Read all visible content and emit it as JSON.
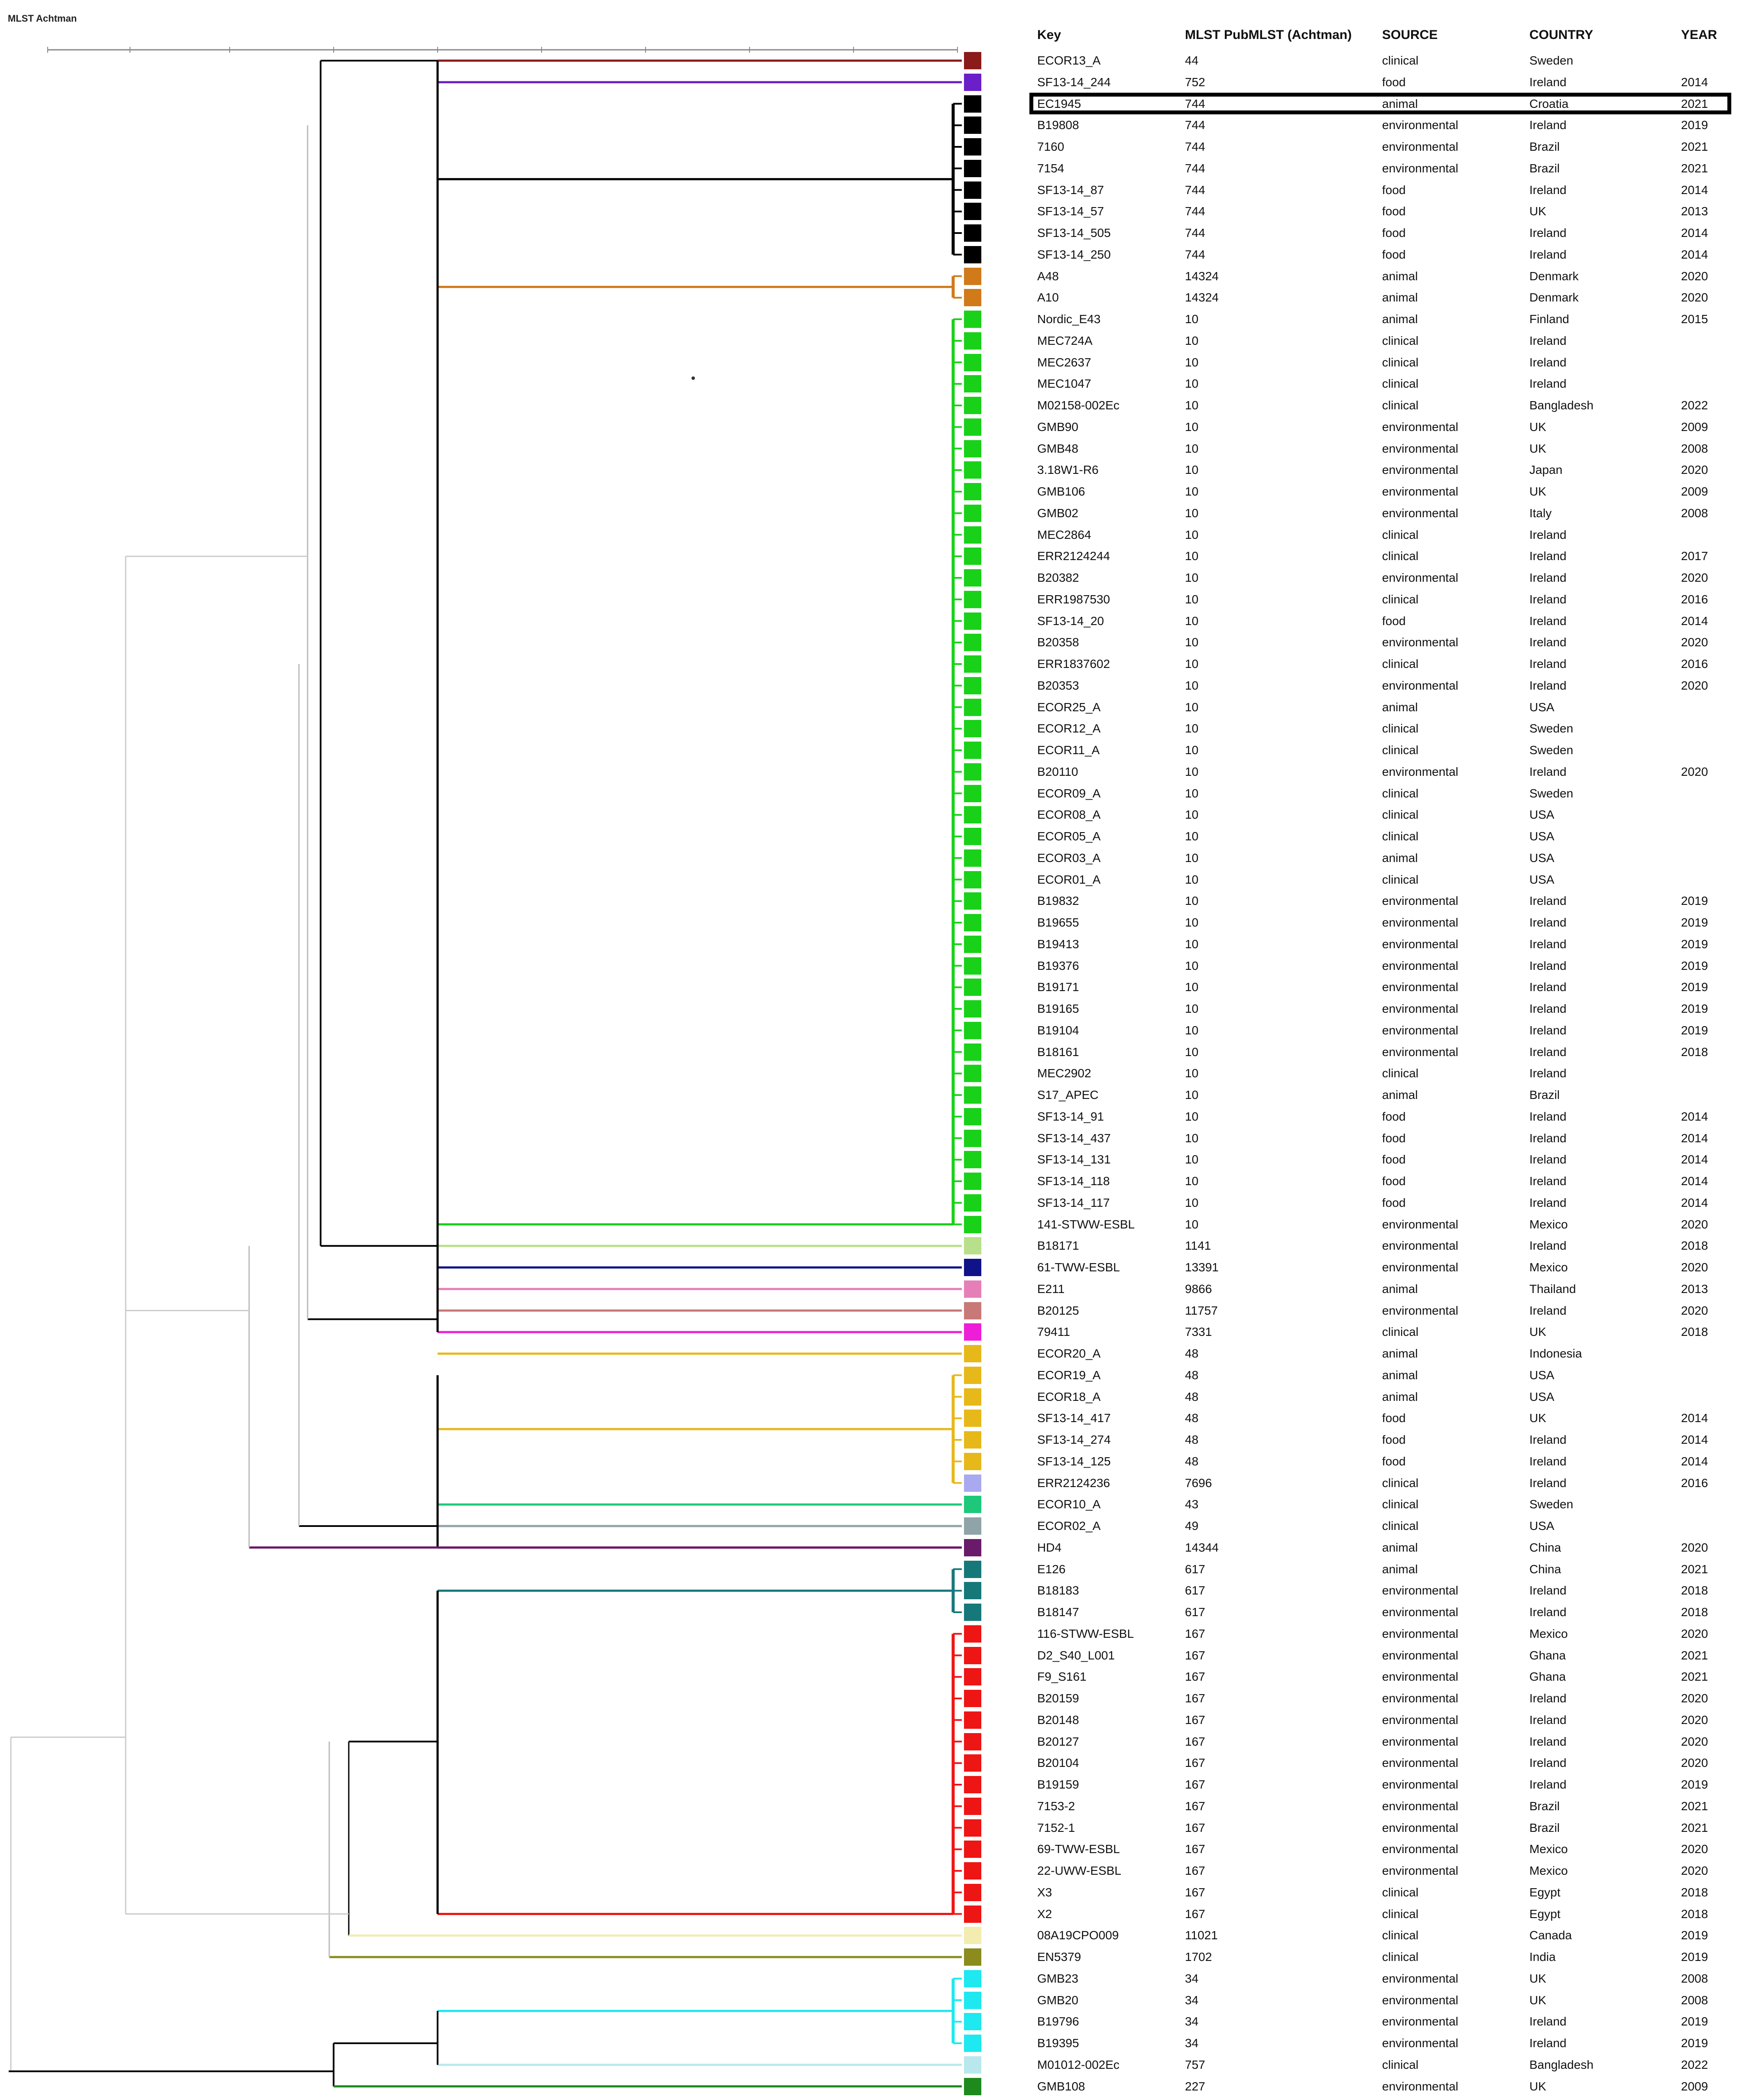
{
  "title": "MLST Achtman",
  "headers": {
    "key": "Key",
    "mlst": "MLST PubMLST (Achtman)",
    "source": "SOURCE",
    "country": "COUNTRY",
    "year": "YEAR"
  },
  "highlighted_row": 2,
  "rows": [
    {
      "key": "ECOR13_A",
      "st": "44",
      "source": "clinical",
      "country": "Sweden",
      "year": "",
      "color": "#8b1a1a"
    },
    {
      "key": "SF13-14_244",
      "st": "752",
      "source": "food",
      "country": "Ireland",
      "year": "2014",
      "color": "#6a1fc9"
    },
    {
      "key": "EC1945",
      "st": "744",
      "source": "animal",
      "country": "Croatia",
      "year": "2021",
      "color": "#000000"
    },
    {
      "key": "B19808",
      "st": "744",
      "source": "environmental",
      "country": "Ireland",
      "year": "2019",
      "color": "#000000"
    },
    {
      "key": "7160",
      "st": "744",
      "source": "environmental",
      "country": "Brazil",
      "year": "2021",
      "color": "#000000"
    },
    {
      "key": "7154",
      "st": "744",
      "source": "environmental",
      "country": "Brazil",
      "year": "2021",
      "color": "#000000"
    },
    {
      "key": "SF13-14_87",
      "st": "744",
      "source": "food",
      "country": "Ireland",
      "year": "2014",
      "color": "#000000"
    },
    {
      "key": "SF13-14_57",
      "st": "744",
      "source": "food",
      "country": "UK",
      "year": "2013",
      "color": "#000000"
    },
    {
      "key": "SF13-14_505",
      "st": "744",
      "source": "food",
      "country": "Ireland",
      "year": "2014",
      "color": "#000000"
    },
    {
      "key": "SF13-14_250",
      "st": "744",
      "source": "food",
      "country": "Ireland",
      "year": "2014",
      "color": "#000000"
    },
    {
      "key": "A48",
      "st": "14324",
      "source": "animal",
      "country": "Denmark",
      "year": "2020",
      "color": "#d07a1a"
    },
    {
      "key": "A10",
      "st": "14324",
      "source": "animal",
      "country": "Denmark",
      "year": "2020",
      "color": "#d07a1a"
    },
    {
      "key": "Nordic_E43",
      "st": "10",
      "source": "animal",
      "country": "Finland",
      "year": "2015",
      "color": "#19d119"
    },
    {
      "key": "MEC724A",
      "st": "10",
      "source": "clinical",
      "country": "Ireland",
      "year": "",
      "color": "#19d119"
    },
    {
      "key": "MEC2637",
      "st": "10",
      "source": "clinical",
      "country": "Ireland",
      "year": "",
      "color": "#19d119"
    },
    {
      "key": "MEC1047",
      "st": "10",
      "source": "clinical",
      "country": "Ireland",
      "year": "",
      "color": "#19d119"
    },
    {
      "key": "M02158-002Ec",
      "st": "10",
      "source": "clinical",
      "country": "Bangladesh",
      "year": "2022",
      "color": "#19d119"
    },
    {
      "key": "GMB90",
      "st": "10",
      "source": "environmental",
      "country": "UK",
      "year": "2009",
      "color": "#19d119"
    },
    {
      "key": "GMB48",
      "st": "10",
      "source": "environmental",
      "country": "UK",
      "year": "2008",
      "color": "#19d119"
    },
    {
      "key": "3.18W1-R6",
      "st": "10",
      "source": "environmental",
      "country": "Japan",
      "year": "2020",
      "color": "#19d119"
    },
    {
      "key": "GMB106",
      "st": "10",
      "source": "environmental",
      "country": "UK",
      "year": "2009",
      "color": "#19d119"
    },
    {
      "key": "GMB02",
      "st": "10",
      "source": "environmental",
      "country": "Italy",
      "year": "2008",
      "color": "#19d119"
    },
    {
      "key": "MEC2864",
      "st": "10",
      "source": "clinical",
      "country": "Ireland",
      "year": "",
      "color": "#19d119"
    },
    {
      "key": "ERR2124244",
      "st": "10",
      "source": "clinical",
      "country": "Ireland",
      "year": "2017",
      "color": "#19d119"
    },
    {
      "key": "B20382",
      "st": "10",
      "source": "environmental",
      "country": "Ireland",
      "year": "2020",
      "color": "#19d119"
    },
    {
      "key": "ERR1987530",
      "st": "10",
      "source": "clinical",
      "country": "Ireland",
      "year": "2016",
      "color": "#19d119"
    },
    {
      "key": "SF13-14_20",
      "st": "10",
      "source": "food",
      "country": "Ireland",
      "year": "2014",
      "color": "#19d119"
    },
    {
      "key": "B20358",
      "st": "10",
      "source": "environmental",
      "country": "Ireland",
      "year": "2020",
      "color": "#19d119"
    },
    {
      "key": "ERR1837602",
      "st": "10",
      "source": "clinical",
      "country": "Ireland",
      "year": "2016",
      "color": "#19d119"
    },
    {
      "key": "B20353",
      "st": "10",
      "source": "environmental",
      "country": "Ireland",
      "year": "2020",
      "color": "#19d119"
    },
    {
      "key": "ECOR25_A",
      "st": "10",
      "source": "animal",
      "country": "USA",
      "year": "",
      "color": "#19d119"
    },
    {
      "key": "ECOR12_A",
      "st": "10",
      "source": "clinical",
      "country": "Sweden",
      "year": "",
      "color": "#19d119"
    },
    {
      "key": "ECOR11_A",
      "st": "10",
      "source": "clinical",
      "country": "Sweden",
      "year": "",
      "color": "#19d119"
    },
    {
      "key": "B20110",
      "st": "10",
      "source": "environmental",
      "country": "Ireland",
      "year": "2020",
      "color": "#19d119"
    },
    {
      "key": "ECOR09_A",
      "st": "10",
      "source": "clinical",
      "country": "Sweden",
      "year": "",
      "color": "#19d119"
    },
    {
      "key": "ECOR08_A",
      "st": "10",
      "source": "clinical",
      "country": "USA",
      "year": "",
      "color": "#19d119"
    },
    {
      "key": "ECOR05_A",
      "st": "10",
      "source": "clinical",
      "country": "USA",
      "year": "",
      "color": "#19d119"
    },
    {
      "key": "ECOR03_A",
      "st": "10",
      "source": "animal",
      "country": "USA",
      "year": "",
      "color": "#19d119"
    },
    {
      "key": "ECOR01_A",
      "st": "10",
      "source": "clinical",
      "country": "USA",
      "year": "",
      "color": "#19d119"
    },
    {
      "key": "B19832",
      "st": "10",
      "source": "environmental",
      "country": "Ireland",
      "year": "2019",
      "color": "#19d119"
    },
    {
      "key": "B19655",
      "st": "10",
      "source": "environmental",
      "country": "Ireland",
      "year": "2019",
      "color": "#19d119"
    },
    {
      "key": "B19413",
      "st": "10",
      "source": "environmental",
      "country": "Ireland",
      "year": "2019",
      "color": "#19d119"
    },
    {
      "key": "B19376",
      "st": "10",
      "source": "environmental",
      "country": "Ireland",
      "year": "2019",
      "color": "#19d119"
    },
    {
      "key": "B19171",
      "st": "10",
      "source": "environmental",
      "country": "Ireland",
      "year": "2019",
      "color": "#19d119"
    },
    {
      "key": "B19165",
      "st": "10",
      "source": "environmental",
      "country": "Ireland",
      "year": "2019",
      "color": "#19d119"
    },
    {
      "key": "B19104",
      "st": "10",
      "source": "environmental",
      "country": "Ireland",
      "year": "2019",
      "color": "#19d119"
    },
    {
      "key": "B18161",
      "st": "10",
      "source": "environmental",
      "country": "Ireland",
      "year": "2018",
      "color": "#19d119"
    },
    {
      "key": "MEC2902",
      "st": "10",
      "source": "clinical",
      "country": "Ireland",
      "year": "",
      "color": "#19d119"
    },
    {
      "key": "S17_APEC",
      "st": "10",
      "source": "animal",
      "country": "Brazil",
      "year": "",
      "color": "#19d119"
    },
    {
      "key": "SF13-14_91",
      "st": "10",
      "source": "food",
      "country": "Ireland",
      "year": "2014",
      "color": "#19d119"
    },
    {
      "key": "SF13-14_437",
      "st": "10",
      "source": "food",
      "country": "Ireland",
      "year": "2014",
      "color": "#19d119"
    },
    {
      "key": "SF13-14_131",
      "st": "10",
      "source": "food",
      "country": "Ireland",
      "year": "2014",
      "color": "#19d119"
    },
    {
      "key": "SF13-14_118",
      "st": "10",
      "source": "food",
      "country": "Ireland",
      "year": "2014",
      "color": "#19d119"
    },
    {
      "key": "SF13-14_117",
      "st": "10",
      "source": "food",
      "country": "Ireland",
      "year": "2014",
      "color": "#19d119"
    },
    {
      "key": "141-STWW-ESBL",
      "st": "10",
      "source": "environmental",
      "country": "Mexico",
      "year": "2020",
      "color": "#19d119"
    },
    {
      "key": "B18171",
      "st": "1141",
      "source": "environmental",
      "country": "Ireland",
      "year": "2018",
      "color": "#b8e08a"
    },
    {
      "key": "61-TWW-ESBL",
      "st": "13391",
      "source": "environmental",
      "country": "Mexico",
      "year": "2020",
      "color": "#10128a"
    },
    {
      "key": "E211",
      "st": "9866",
      "source": "animal",
      "country": "Thailand",
      "year": "2013",
      "color": "#e67fb8"
    },
    {
      "key": "B20125",
      "st": "11757",
      "source": "environmental",
      "country": "Ireland",
      "year": "2020",
      "color": "#c97878"
    },
    {
      "key": "79411",
      "st": "7331",
      "source": "clinical",
      "country": "UK",
      "year": "2018",
      "color": "#ee1ed8"
    },
    {
      "key": "ECOR20_A",
      "st": "48",
      "source": "animal",
      "country": "Indonesia",
      "year": "",
      "color": "#e7b81a"
    },
    {
      "key": "ECOR19_A",
      "st": "48",
      "source": "animal",
      "country": "USA",
      "year": "",
      "color": "#e7b81a"
    },
    {
      "key": "ECOR18_A",
      "st": "48",
      "source": "animal",
      "country": "USA",
      "year": "",
      "color": "#e7b81a"
    },
    {
      "key": "SF13-14_417",
      "st": "48",
      "source": "food",
      "country": "UK",
      "year": "2014",
      "color": "#e7b81a"
    },
    {
      "key": "SF13-14_274",
      "st": "48",
      "source": "food",
      "country": "Ireland",
      "year": "2014",
      "color": "#e7b81a"
    },
    {
      "key": "SF13-14_125",
      "st": "48",
      "source": "food",
      "country": "Ireland",
      "year": "2014",
      "color": "#e7b81a"
    },
    {
      "key": "ERR2124236",
      "st": "7696",
      "source": "clinical",
      "country": "Ireland",
      "year": "2016",
      "color": "#a9a9f0"
    },
    {
      "key": "ECOR10_A",
      "st": "43",
      "source": "clinical",
      "country": "Sweden",
      "year": "",
      "color": "#1ec87a"
    },
    {
      "key": "ECOR02_A",
      "st": "49",
      "source": "clinical",
      "country": "USA",
      "year": "",
      "color": "#8fa3a8"
    },
    {
      "key": "HD4",
      "st": "14344",
      "source": "animal",
      "country": "China",
      "year": "2020",
      "color": "#6a1a6a"
    },
    {
      "key": "E126",
      "st": "617",
      "source": "animal",
      "country": "China",
      "year": "2021",
      "color": "#17787a"
    },
    {
      "key": "B18183",
      "st": "617",
      "source": "environmental",
      "country": "Ireland",
      "year": "2018",
      "color": "#17787a"
    },
    {
      "key": "B18147",
      "st": "617",
      "source": "environmental",
      "country": "Ireland",
      "year": "2018",
      "color": "#17787a"
    },
    {
      "key": "116-STWW-ESBL",
      "st": "167",
      "source": "environmental",
      "country": "Mexico",
      "year": "2020",
      "color": "#ee1515"
    },
    {
      "key": "D2_S40_L001",
      "st": "167",
      "source": "environmental",
      "country": "Ghana",
      "year": "2021",
      "color": "#ee1515"
    },
    {
      "key": "F9_S161",
      "st": "167",
      "source": "environmental",
      "country": "Ghana",
      "year": "2021",
      "color": "#ee1515"
    },
    {
      "key": "B20159",
      "st": "167",
      "source": "environmental",
      "country": "Ireland",
      "year": "2020",
      "color": "#ee1515"
    },
    {
      "key": "B20148",
      "st": "167",
      "source": "environmental",
      "country": "Ireland",
      "year": "2020",
      "color": "#ee1515"
    },
    {
      "key": "B20127",
      "st": "167",
      "source": "environmental",
      "country": "Ireland",
      "year": "2020",
      "color": "#ee1515"
    },
    {
      "key": "B20104",
      "st": "167",
      "source": "environmental",
      "country": "Ireland",
      "year": "2020",
      "color": "#ee1515"
    },
    {
      "key": "B19159",
      "st": "167",
      "source": "environmental",
      "country": "Ireland",
      "year": "2019",
      "color": "#ee1515"
    },
    {
      "key": "7153-2",
      "st": "167",
      "source": "environmental",
      "country": "Brazil",
      "year": "2021",
      "color": "#ee1515"
    },
    {
      "key": "7152-1",
      "st": "167",
      "source": "environmental",
      "country": "Brazil",
      "year": "2021",
      "color": "#ee1515"
    },
    {
      "key": "69-TWW-ESBL",
      "st": "167",
      "source": "environmental",
      "country": "Mexico",
      "year": "2020",
      "color": "#ee1515"
    },
    {
      "key": "22-UWW-ESBL",
      "st": "167",
      "source": "environmental",
      "country": "Mexico",
      "year": "2020",
      "color": "#ee1515"
    },
    {
      "key": "X3",
      "st": "167",
      "source": "clinical",
      "country": "Egypt",
      "year": "2018",
      "color": "#ee1515"
    },
    {
      "key": "X2",
      "st": "167",
      "source": "clinical",
      "country": "Egypt",
      "year": "2018",
      "color": "#ee1515"
    },
    {
      "key": "08A19CPO009",
      "st": "11021",
      "source": "clinical",
      "country": "Canada",
      "year": "2019",
      "color": "#f2ecb0"
    },
    {
      "key": "EN5379",
      "st": "1702",
      "source": "clinical",
      "country": "India",
      "year": "2019",
      "color": "#8b8b1e"
    },
    {
      "key": "GMB23",
      "st": "34",
      "source": "environmental",
      "country": "UK",
      "year": "2008",
      "color": "#1ee8f0"
    },
    {
      "key": "GMB20",
      "st": "34",
      "source": "environmental",
      "country": "UK",
      "year": "2008",
      "color": "#1ee8f0"
    },
    {
      "key": "B19796",
      "st": "34",
      "source": "environmental",
      "country": "Ireland",
      "year": "2019",
      "color": "#1ee8f0"
    },
    {
      "key": "B19395",
      "st": "34",
      "source": "environmental",
      "country": "Ireland",
      "year": "2019",
      "color": "#1ee8f0"
    },
    {
      "key": "M01012-002Ec",
      "st": "757",
      "source": "clinical",
      "country": "Bangladesh",
      "year": "2022",
      "color": "#b8e8ec"
    },
    {
      "key": "GMB108",
      "st": "227",
      "source": "environmental",
      "country": "UK",
      "year": "2009",
      "color": "#1e8a1e"
    }
  ]
}
